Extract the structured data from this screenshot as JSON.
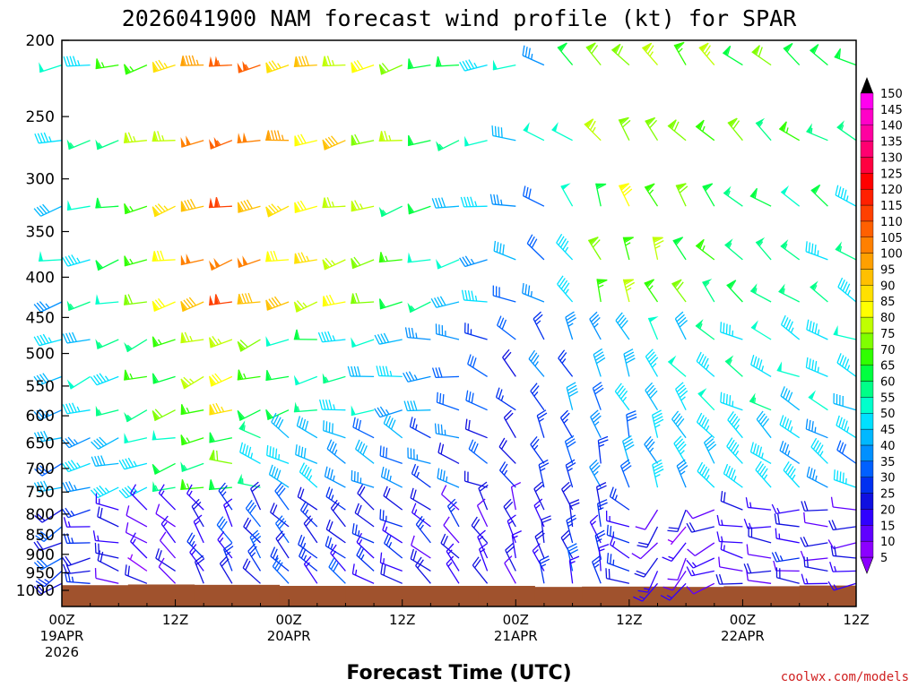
{
  "chart_data": {
    "type": "wind-barb-profile",
    "title": "2026041900 NAM forecast wind profile (kt) for SPAR",
    "xlabel": "Forecast Time (UTC)",
    "credit": "coolwx.com/models",
    "x_range_hours": [
      0,
      84
    ],
    "ylim_hpa": [
      200,
      1000
    ],
    "pressure_ticks": [
      {
        "p": 200,
        "label": "200"
      },
      {
        "p": 250,
        "label": "250"
      },
      {
        "p": 300,
        "label": "300"
      },
      {
        "p": 350,
        "label": "350"
      },
      {
        "p": 400,
        "label": "400"
      },
      {
        "p": 450,
        "label": "450"
      },
      {
        "p": 500,
        "label": "500"
      },
      {
        "p": 550,
        "label": "550"
      },
      {
        "p": 600,
        "label": "600"
      },
      {
        "p": 650,
        "label": "650"
      },
      {
        "p": 700,
        "label": "700"
      },
      {
        "p": 750,
        "label": "750"
      },
      {
        "p": 800,
        "label": "800"
      },
      {
        "p": 850,
        "label": "850"
      },
      {
        "p": 900,
        "label": "900"
      },
      {
        "p": 950,
        "label": "950"
      },
      {
        "p": 1000,
        "label": "1000"
      }
    ],
    "time_ticks": [
      {
        "hour": 0,
        "lines": [
          "00Z",
          "19APR",
          "2026"
        ]
      },
      {
        "hour": 12,
        "lines": [
          "12Z"
        ]
      },
      {
        "hour": 24,
        "lines": [
          "00Z",
          "20APR"
        ]
      },
      {
        "hour": 36,
        "lines": [
          "12Z"
        ]
      },
      {
        "hour": 48,
        "lines": [
          "00Z",
          "21APR"
        ]
      },
      {
        "hour": 60,
        "lines": [
          "12Z"
        ]
      },
      {
        "hour": 72,
        "lines": [
          "00Z",
          "22APR"
        ]
      },
      {
        "hour": 84,
        "lines": [
          "12Z"
        ]
      }
    ],
    "colorbar": {
      "ticks": [
        "5",
        "10",
        "15",
        "20",
        "25",
        "30",
        "35",
        "40",
        "45",
        "50",
        "55",
        "60",
        "65",
        "70",
        "75",
        "80",
        "85",
        "90",
        "95",
        "100",
        "105",
        "110",
        "115",
        "120",
        "125",
        "130",
        "135",
        "140",
        "145",
        "150"
      ],
      "colors": [
        "#8c00ff",
        "#6000ff",
        "#3000ff",
        "#1010e0",
        "#0030f0",
        "#0060ff",
        "#0090ff",
        "#00b8ff",
        "#00e0ff",
        "#00ffcc",
        "#00ff88",
        "#00ff40",
        "#30ff00",
        "#80ff00",
        "#c0ff00",
        "#ffff00",
        "#ffe000",
        "#ffc000",
        "#ffa000",
        "#ff8000",
        "#ff6000",
        "#ff4000",
        "#ff2000",
        "#ff0000",
        "#ff0040",
        "#ff0070",
        "#ff00a0",
        "#ff00c8",
        "#ff00f0",
        "#ff40ff"
      ]
    },
    "terrain": {
      "color": "#a0522d",
      "surface_pressure_hpa": [
        {
          "hour": 0,
          "p": 985
        },
        {
          "hour": 7,
          "p": 983
        },
        {
          "hour": 14,
          "p": 984
        },
        {
          "hour": 23,
          "p": 987
        },
        {
          "hour": 30,
          "p": 987
        },
        {
          "hour": 44,
          "p": 987
        },
        {
          "hour": 50,
          "p": 990
        },
        {
          "hour": 55,
          "p": 989
        },
        {
          "hour": 65,
          "p": 990
        },
        {
          "hour": 70,
          "p": 988
        },
        {
          "hour": 78,
          "p": 986
        },
        {
          "hour": 84,
          "p": 986
        }
      ]
    },
    "wind_levels_hpa": [
      215,
      268,
      325,
      380,
      430,
      480,
      535,
      590,
      640,
      690,
      740,
      790,
      830,
      870,
      910,
      945,
      980
    ],
    "wind_times_hours": [
      0,
      3,
      6,
      9,
      12,
      15,
      18,
      21,
      24,
      27,
      30,
      33,
      36,
      39,
      42,
      45,
      48,
      51,
      54,
      57,
      60,
      63,
      66,
      69,
      72,
      75,
      78,
      81,
      84
    ],
    "wind_field_note": "directions (deg, meteorological) and speeds (kt) approximated per level/time"
  }
}
